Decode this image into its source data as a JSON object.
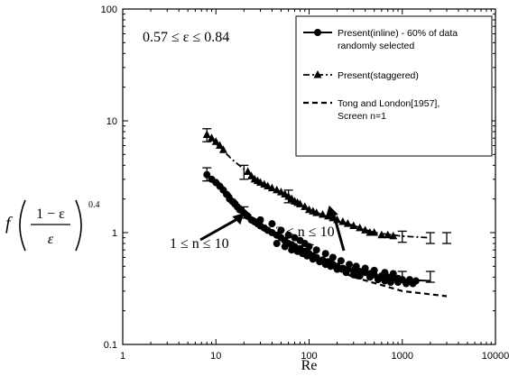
{
  "chart_data": {
    "type": "scatter",
    "title": "",
    "xlabel": "Re",
    "x_scale": "log",
    "y_scale": "log",
    "xlim": [
      1,
      10000
    ],
    "ylim": [
      0.1,
      100
    ],
    "x_ticks": [
      "1",
      "10",
      "100",
      "1000",
      "10000"
    ],
    "y_ticks": [
      "0.1",
      "1",
      "10",
      "100"
    ],
    "ylabel_parts": {
      "f": "f",
      "numerator": "1 − ε",
      "denominator": "ε",
      "exponent": "0.4"
    },
    "range_text": "0.57 ≤ ε ≤ 0.84",
    "annotations": [
      {
        "text": "3 ≤ n ≤ 10",
        "arrow_to": [
          150,
          1.35
        ]
      },
      {
        "text": "1 ≤ n ≤ 10",
        "arrow_to": [
          20,
          1.5
        ]
      }
    ],
    "legend": [
      {
        "label_lines": [
          "Present(inline) - 60% of data",
          "randomly selected"
        ],
        "marker": "circle",
        "line": "solid"
      },
      {
        "label_lines": [
          "Present(staggered)"
        ],
        "marker": "triangle",
        "line": "dash-dot"
      },
      {
        "label_lines": [
          "Tong and London[1957],",
          "Screen n=1"
        ],
        "marker": "none",
        "line": "dashed"
      }
    ],
    "series": [
      {
        "name": "Present(inline) - 60% of data randomly selected",
        "marker": "circle",
        "points": [
          [
            8,
            3.3
          ],
          [
            9,
            3.0
          ],
          [
            10,
            2.8
          ],
          [
            11,
            2.6
          ],
          [
            12,
            2.4
          ],
          [
            13,
            2.2
          ],
          [
            14,
            2.0
          ],
          [
            15,
            1.9
          ],
          [
            16,
            1.8
          ],
          [
            17,
            1.7
          ],
          [
            18,
            1.6
          ],
          [
            20,
            1.5
          ],
          [
            22,
            1.4
          ],
          [
            24,
            1.3
          ],
          [
            26,
            1.25
          ],
          [
            28,
            1.2
          ],
          [
            30,
            1.15
          ],
          [
            33,
            1.1
          ],
          [
            36,
            1.05
          ],
          [
            40,
            1.0
          ],
          [
            45,
            0.95
          ],
          [
            50,
            0.9
          ],
          [
            55,
            0.85
          ],
          [
            60,
            0.8
          ],
          [
            65,
            0.78
          ],
          [
            70,
            0.75
          ],
          [
            80,
            0.72
          ],
          [
            90,
            0.68
          ],
          [
            100,
            0.65
          ],
          [
            110,
            0.62
          ],
          [
            120,
            0.6
          ],
          [
            140,
            0.57
          ],
          [
            160,
            0.55
          ],
          [
            180,
            0.52
          ],
          [
            200,
            0.5
          ],
          [
            230,
            0.48
          ],
          [
            260,
            0.47
          ],
          [
            300,
            0.46
          ],
          [
            350,
            0.45
          ],
          [
            400,
            0.44
          ],
          [
            450,
            0.43
          ],
          [
            500,
            0.42
          ],
          [
            600,
            0.41
          ],
          [
            700,
            0.4
          ],
          [
            800,
            0.39
          ],
          [
            900,
            0.39
          ],
          [
            1000,
            0.38
          ],
          [
            1200,
            0.38
          ],
          [
            1400,
            0.37
          ],
          [
            30,
            1.3
          ],
          [
            40,
            1.2
          ],
          [
            50,
            1.05
          ],
          [
            60,
            0.95
          ],
          [
            70,
            0.9
          ],
          [
            80,
            0.85
          ],
          [
            90,
            0.8
          ],
          [
            100,
            0.75
          ],
          [
            120,
            0.7
          ],
          [
            150,
            0.65
          ],
          [
            180,
            0.6
          ],
          [
            220,
            0.56
          ],
          [
            270,
            0.52
          ],
          [
            320,
            0.5
          ],
          [
            400,
            0.48
          ],
          [
            500,
            0.46
          ],
          [
            650,
            0.44
          ],
          [
            800,
            0.43
          ],
          [
            45,
            0.8
          ],
          [
            55,
            0.75
          ],
          [
            65,
            0.7
          ],
          [
            75,
            0.68
          ],
          [
            85,
            0.65
          ],
          [
            95,
            0.62
          ],
          [
            110,
            0.58
          ],
          [
            130,
            0.55
          ],
          [
            150,
            0.52
          ],
          [
            170,
            0.5
          ],
          [
            200,
            0.47
          ],
          [
            250,
            0.44
          ],
          [
            300,
            0.42
          ],
          [
            350,
            0.41
          ],
          [
            450,
            0.4
          ],
          [
            550,
            0.38
          ],
          [
            650,
            0.37
          ],
          [
            750,
            0.36
          ],
          [
            900,
            0.36
          ],
          [
            1100,
            0.35
          ],
          [
            1300,
            0.35
          ]
        ],
        "error_bars": [
          {
            "x": 8,
            "y": 3.3,
            "low": 2.9,
            "high": 3.8
          },
          {
            "x": 20,
            "y": 1.5,
            "low": 1.35,
            "high": 1.7
          },
          {
            "x": 100,
            "y": 0.7,
            "low": 0.62,
            "high": 0.78
          },
          {
            "x": 1000,
            "y": 0.4,
            "low": 0.36,
            "high": 0.45
          },
          {
            "x": 2000,
            "y": 0.4,
            "low": 0.36,
            "high": 0.45
          }
        ]
      },
      {
        "name": "Present(staggered)",
        "marker": "triangle",
        "points": [
          [
            8,
            7.5
          ],
          [
            9,
            7.0
          ],
          [
            10,
            6.5
          ],
          [
            11,
            6.0
          ],
          [
            12,
            5.5
          ],
          [
            22,
            3.5
          ],
          [
            24,
            3.2
          ],
          [
            26,
            3.0
          ],
          [
            28,
            2.9
          ],
          [
            30,
            2.8
          ],
          [
            33,
            2.7
          ],
          [
            36,
            2.6
          ],
          [
            40,
            2.5
          ],
          [
            45,
            2.4
          ],
          [
            50,
            2.3
          ],
          [
            55,
            2.2
          ],
          [
            60,
            2.1
          ],
          [
            65,
            2.0
          ],
          [
            70,
            1.9
          ],
          [
            75,
            1.85
          ],
          [
            80,
            1.8
          ],
          [
            90,
            1.7
          ],
          [
            100,
            1.6
          ],
          [
            110,
            1.55
          ],
          [
            120,
            1.5
          ],
          [
            140,
            1.45
          ],
          [
            160,
            1.4
          ],
          [
            180,
            1.35
          ],
          [
            200,
            1.3
          ],
          [
            230,
            1.25
          ],
          [
            260,
            1.2
          ],
          [
            300,
            1.15
          ],
          [
            350,
            1.1
          ],
          [
            400,
            1.05
          ],
          [
            450,
            1.0
          ],
          [
            500,
            1.0
          ],
          [
            600,
            0.95
          ],
          [
            700,
            0.95
          ],
          [
            800,
            0.93
          ]
        ],
        "error_bars": [
          {
            "x": 8,
            "y": 7.5,
            "low": 6.5,
            "high": 8.5
          },
          {
            "x": 20,
            "y": 3.5,
            "low": 3.0,
            "high": 4.0
          },
          {
            "x": 60,
            "y": 2.1,
            "low": 1.85,
            "high": 2.4
          },
          {
            "x": 1000,
            "y": 0.92,
            "low": 0.82,
            "high": 1.03
          },
          {
            "x": 2000,
            "y": 0.9,
            "low": 0.8,
            "high": 1.0
          },
          {
            "x": 3000,
            "y": 0.9,
            "low": 0.8,
            "high": 1.0
          }
        ]
      },
      {
        "name": "Tong and London[1957], Screen n=1",
        "marker": "none",
        "points": [
          [
            10,
            3.0
          ],
          [
            20,
            1.6
          ],
          [
            50,
            0.85
          ],
          [
            100,
            0.6
          ],
          [
            300,
            0.4
          ],
          [
            1000,
            0.3
          ],
          [
            3000,
            0.27
          ]
        ]
      }
    ]
  }
}
